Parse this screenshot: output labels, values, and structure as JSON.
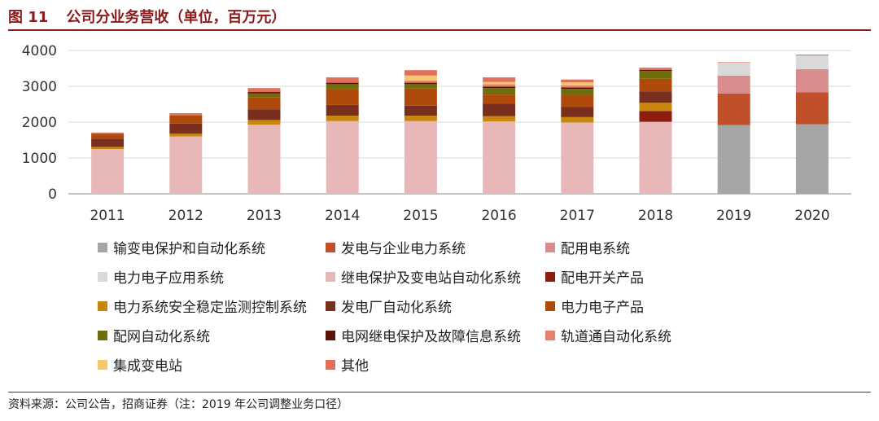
{
  "header": {
    "figure_no": "图 11",
    "title": "公司分业务营收（单位，百万元）"
  },
  "footer": {
    "source": "资料来源：公司公告，招商证券（注：2019 年公司调整业务口径）"
  },
  "chart_data": {
    "type": "bar",
    "stacked": true,
    "title": "公司分业务营收（单位，百万元）",
    "xlabel": "",
    "ylabel": "",
    "ylim": [
      0,
      4000
    ],
    "yticks": [
      0,
      1000,
      2000,
      3000,
      4000
    ],
    "ytick_labels": [
      "0",
      "1000",
      "2000",
      "3000",
      "4000"
    ],
    "grid": true,
    "legend_position": "bottom",
    "categories": [
      "2011",
      "2012",
      "2013",
      "2014",
      "2015",
      "2016",
      "2017",
      "2018",
      "2019",
      "2020"
    ],
    "series": [
      {
        "name": "输变电保护和自动化系统",
        "color": "#a6a6a6",
        "values": [
          0,
          0,
          0,
          0,
          0,
          0,
          0,
          0,
          1920,
          1940
        ]
      },
      {
        "name": "发电与企业电力系统",
        "color": "#c0502a",
        "values": [
          0,
          0,
          0,
          0,
          0,
          0,
          0,
          0,
          880,
          890
        ]
      },
      {
        "name": "配用电系统",
        "color": "#d98c8c",
        "values": [
          0,
          0,
          0,
          0,
          0,
          0,
          0,
          0,
          500,
          650
        ]
      },
      {
        "name": "电力电子应用系统",
        "color": "#d9d9d9",
        "values": [
          0,
          0,
          0,
          0,
          0,
          0,
          0,
          0,
          360,
          380
        ]
      },
      {
        "name": "继电保护及变电站自动化系统",
        "color": "#e8b8b8",
        "values": [
          1250,
          1600,
          1930,
          2030,
          2030,
          2020,
          1990,
          2010,
          0,
          0
        ]
      },
      {
        "name": "配电开关产品",
        "color": "#8b1e0e",
        "values": [
          0,
          0,
          0,
          0,
          0,
          0,
          0,
          300,
          0,
          0
        ]
      },
      {
        "name": "电力系统安全稳定监测控制系统",
        "color": "#c8860c",
        "values": [
          60,
          80,
          130,
          150,
          150,
          150,
          150,
          230,
          0,
          0
        ]
      },
      {
        "name": "发电厂自动化系统",
        "color": "#7a2e1e",
        "values": [
          230,
          280,
          300,
          300,
          280,
          350,
          290,
          320,
          0,
          0
        ]
      },
      {
        "name": "电力电子产品",
        "color": "#b04a0a",
        "values": [
          130,
          230,
          340,
          450,
          480,
          250,
          330,
          350,
          0,
          0
        ]
      },
      {
        "name": "配网自动化系统",
        "color": "#6e6e0a",
        "values": [
          0,
          0,
          100,
          130,
          120,
          180,
          170,
          220,
          0,
          0
        ]
      },
      {
        "name": "电网继电保护及故障信息系统",
        "color": "#5c1208",
        "values": [
          0,
          0,
          40,
          40,
          40,
          40,
          40,
          30,
          0,
          0
        ]
      },
      {
        "name": "轨道通自动化系统",
        "color": "#e8806a",
        "values": [
          0,
          0,
          0,
          0,
          60,
          70,
          60,
          0,
          0,
          0
        ]
      },
      {
        "name": "集成变电站",
        "color": "#f5c870",
        "values": [
          0,
          0,
          0,
          0,
          140,
          60,
          80,
          0,
          0,
          0
        ]
      },
      {
        "name": "其他",
        "color": "#e0705a",
        "values": [
          40,
          60,
          110,
          150,
          150,
          130,
          80,
          60,
          15,
          25
        ]
      }
    ]
  }
}
